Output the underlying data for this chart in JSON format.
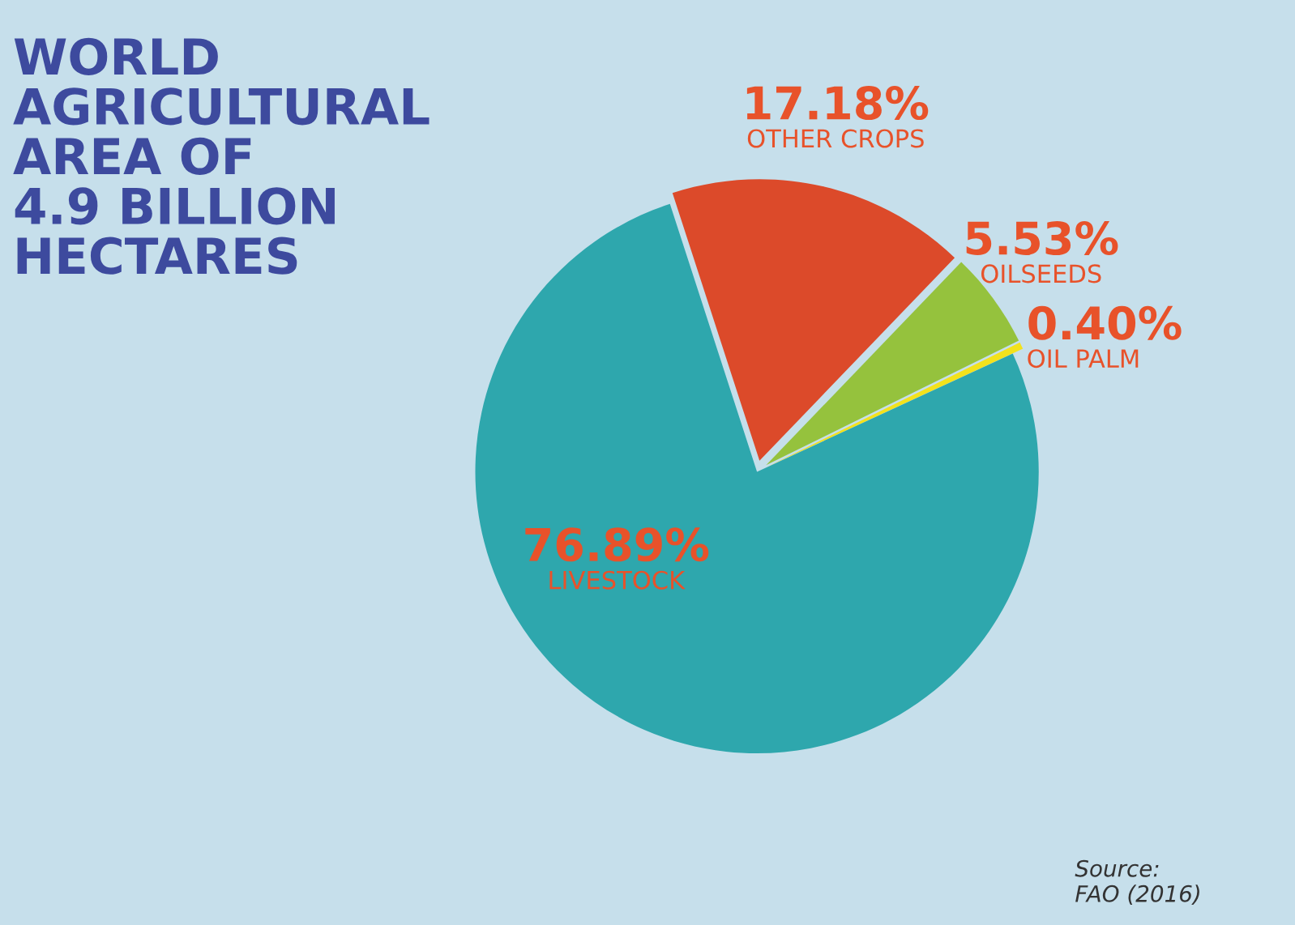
{
  "chart_data": {
    "type": "pie",
    "title": "WORLD\nAGRICULTURAL\nAREA OF\n4.9 BILLION\nHECTARES",
    "categories": [
      "OTHER CROPS",
      "OILSEEDS",
      "OIL PALM",
      "LIVESTOCK"
    ],
    "values": [
      17.18,
      5.53,
      0.4,
      76.89
    ],
    "colors": [
      "#dc4a2a",
      "#95c23d",
      "#f3e21c",
      "#2ea7ad"
    ],
    "value_labels": [
      "17.18%",
      "5.53%",
      "0.40%",
      "76.89%"
    ],
    "annotations": [
      "Source:\nFAO (2016)"
    ]
  }
}
